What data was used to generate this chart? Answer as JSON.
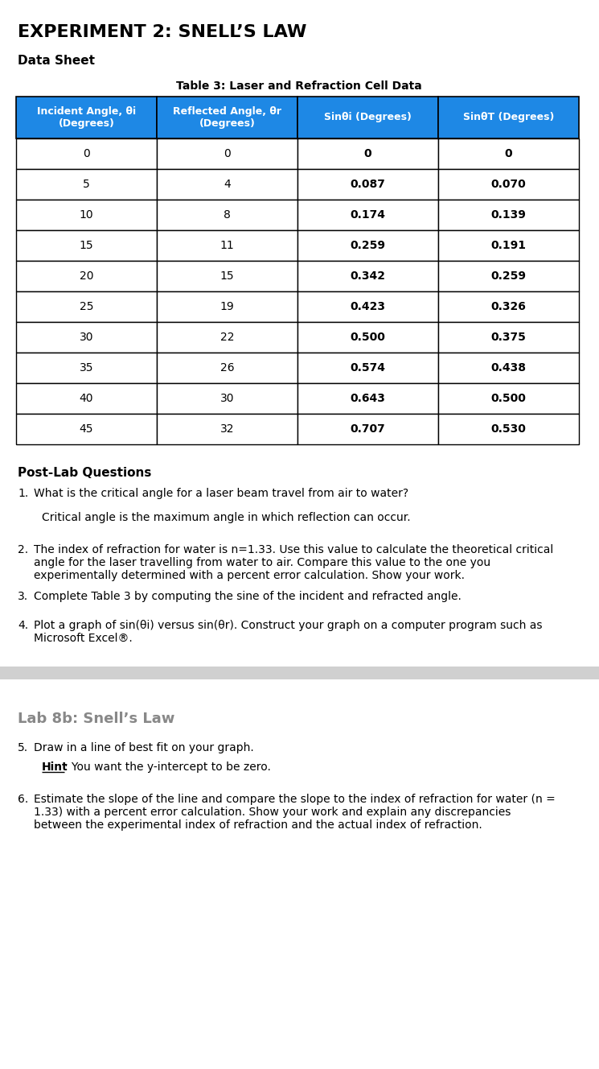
{
  "title": "EXPERIMENT 2: SNELL’S LAW",
  "subtitle": "Data Sheet",
  "table_title": "Table 3: Laser and Refraction Cell Data",
  "col_headers": [
    "Incident Angle, θi\n(Degrees)",
    "Reflected Angle, θr\n(Degrees)",
    "Sinθi (Degrees)",
    "SinθT (Degrees)"
  ],
  "table_data": [
    [
      "0",
      "0",
      "0",
      "0"
    ],
    [
      "5",
      "4",
      "0.087",
      "0.070"
    ],
    [
      "10",
      "8",
      "0.174",
      "0.139"
    ],
    [
      "15",
      "11",
      "0.259",
      "0.191"
    ],
    [
      "20",
      "15",
      "0.342",
      "0.259"
    ],
    [
      "25",
      "19",
      "0.423",
      "0.326"
    ],
    [
      "30",
      "22",
      "0.500",
      "0.375"
    ],
    [
      "35",
      "26",
      "0.574",
      "0.438"
    ],
    [
      "40",
      "30",
      "0.643",
      "0.500"
    ],
    [
      "45",
      "32",
      "0.707",
      "0.530"
    ]
  ],
  "header_bg": "#1e88e5",
  "header_fg": "#ffffff",
  "border_color": "#000000",
  "post_lab_title": "Post-Lab Questions",
  "q1_num": "1.",
  "q1_text": "What is the critical angle for a laser beam travel from air to water?",
  "q1_ans": "Critical angle is the maximum angle in which reflection can occur.",
  "q2_num": "2.",
  "q2_text": "The index of refraction for water is n=1.33. Use this value to calculate the theoretical critical\nangle for the laser travelling from water to air. Compare this value to the one you\nexperimentally determined with a percent error calculation. Show your work.",
  "q3_num": "3.",
  "q3_text": "Complete Table 3 by computing the sine of the incident and refracted angle.",
  "q4_num": "4.",
  "q4_text": "Plot a graph of sin(θi) versus sin(θr). Construct your graph on a computer program such as\nMicrosoft Excel®.",
  "separator_color": "#d0d0d0",
  "lab8b_title": "Lab 8b: Snell’s Law",
  "lab8b_title_color": "#888888",
  "q5_num": "5.",
  "q5_text": "Draw in a line of best fit on your graph.",
  "q5_hint_bold": "Hint",
  "q5_hint_rest": ": You want the y-intercept to be zero.",
  "q6_num": "6.",
  "q6_text": "Estimate the slope of the line and compare the slope to the index of refraction for water (n =\n1.33) with a percent error calculation. Show your work and explain any discrepancies\nbetween the experimental index of refraction and the actual index of refraction.",
  "bg_color": "#ffffff"
}
